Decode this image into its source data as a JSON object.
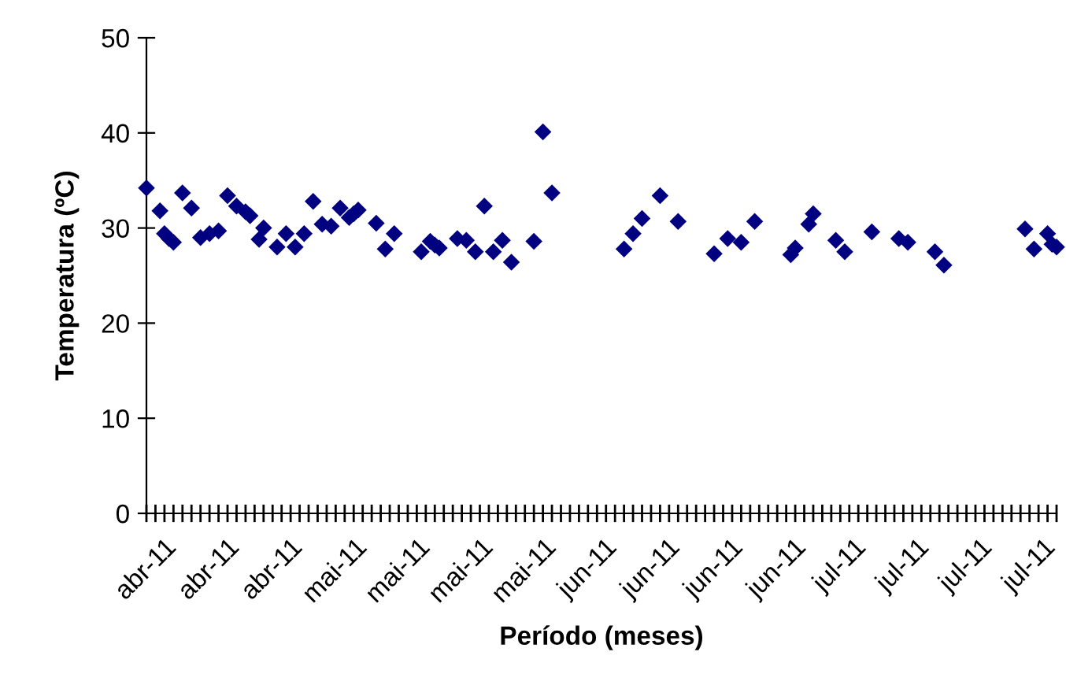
{
  "chart_data": {
    "type": "scatter",
    "xlabel": "Período (meses)",
    "ylabel": "Temperatura (ºC)",
    "categories": [
      "abr-11",
      null,
      null,
      null,
      null,
      null,
      null,
      null,
      null,
      null,
      null,
      null,
      null,
      null,
      "abr-11",
      null,
      null,
      null,
      null,
      null,
      null,
      null,
      null,
      null,
      null,
      null,
      null,
      null,
      "abr-11",
      null,
      null,
      null,
      null,
      null,
      null,
      null,
      null,
      null,
      null,
      null,
      null,
      null,
      "mai-11",
      null,
      null,
      null,
      null,
      null,
      null,
      null,
      null,
      null,
      null,
      null,
      null,
      null,
      "mai-11",
      null,
      null,
      null,
      null,
      null,
      null,
      null,
      null,
      null,
      null,
      null,
      null,
      null,
      "mai-11",
      null,
      null,
      null,
      null,
      null,
      null,
      null,
      null,
      null,
      null,
      null,
      null,
      null,
      "mai-11",
      null,
      null,
      null,
      null,
      null,
      null,
      null,
      null,
      null,
      null,
      null,
      null,
      null,
      "jun-11",
      null,
      null,
      null,
      null,
      null,
      null,
      null,
      null,
      null,
      null,
      null,
      null,
      null,
      "jun-11",
      null,
      null,
      null,
      null,
      null,
      null,
      null,
      null,
      null,
      null,
      null,
      null,
      null,
      "jun-11",
      null,
      null,
      null,
      null,
      null,
      null,
      null,
      null,
      null,
      null,
      null,
      null,
      null,
      "jun-11",
      null,
      null,
      null,
      null,
      null,
      null,
      null,
      null,
      null,
      null,
      null,
      null,
      null,
      "jul-11",
      null,
      null,
      null,
      null,
      null,
      null,
      null,
      null,
      null,
      null,
      null,
      null,
      null,
      "jul-11",
      null,
      null,
      null,
      null,
      null,
      null,
      null,
      null,
      null,
      null,
      null,
      null,
      null,
      "jul-11",
      null,
      null,
      null,
      null,
      null,
      null,
      null,
      null,
      null,
      null,
      null,
      null,
      null,
      "jul-11",
      null,
      null,
      null,
      null,
      null,
      null
    ],
    "values": [
      34.2,
      null,
      null,
      31.8,
      29.4,
      28.9,
      28.5,
      null,
      33.7,
      null,
      32.1,
      null,
      29.0,
      null,
      29.4,
      null,
      29.7,
      null,
      33.4,
      null,
      32.3,
      null,
      31.7,
      31.3,
      null,
      28.8,
      30.0,
      null,
      null,
      28.0,
      null,
      29.4,
      null,
      28.0,
      null,
      29.4,
      null,
      32.8,
      null,
      30.4,
      null,
      30.2,
      null,
      32.1,
      null,
      31.1,
      31.5,
      31.9,
      null,
      null,
      null,
      30.5,
      null,
      27.8,
      null,
      29.4,
      null,
      null,
      null,
      null,
      null,
      27.5,
      null,
      28.6,
      28.2,
      27.9,
      null,
      null,
      null,
      28.9,
      null,
      28.7,
      null,
      27.5,
      null,
      32.3,
      null,
      27.5,
      null,
      28.7,
      null,
      26.4,
      null,
      null,
      null,
      null,
      28.6,
      null,
      40.1,
      null,
      33.7,
      null,
      null,
      null,
      null,
      null,
      null,
      null,
      null,
      null,
      null,
      null,
      null,
      null,
      null,
      null,
      27.8,
      null,
      29.4,
      null,
      31.0,
      null,
      null,
      null,
      33.4,
      null,
      null,
      null,
      30.7,
      null,
      null,
      null,
      null,
      null,
      null,
      null,
      27.3,
      null,
      null,
      28.9,
      null,
      null,
      28.5,
      null,
      null,
      30.7,
      null,
      null,
      null,
      null,
      null,
      null,
      null,
      27.2,
      27.9,
      null,
      null,
      30.4,
      31.5,
      null,
      null,
      null,
      null,
      28.7,
      null,
      27.5,
      null,
      null,
      null,
      null,
      null,
      29.6,
      null,
      null,
      null,
      null,
      null,
      28.9,
      null,
      28.5,
      null,
      null,
      null,
      null,
      null,
      27.5,
      null,
      26.1,
      null,
      null,
      null,
      null,
      null,
      null,
      null,
      null,
      null,
      null,
      null,
      null,
      null,
      null,
      null,
      null,
      null,
      29.9,
      null,
      27.8,
      null,
      null,
      29.4,
      28.3,
      28.0
    ],
    "color": "#000080",
    "marker": "diamond",
    "ylim": [
      0,
      50
    ],
    "yticks": [
      0,
      10,
      20,
      30,
      40,
      50
    ],
    "legend": false
  }
}
